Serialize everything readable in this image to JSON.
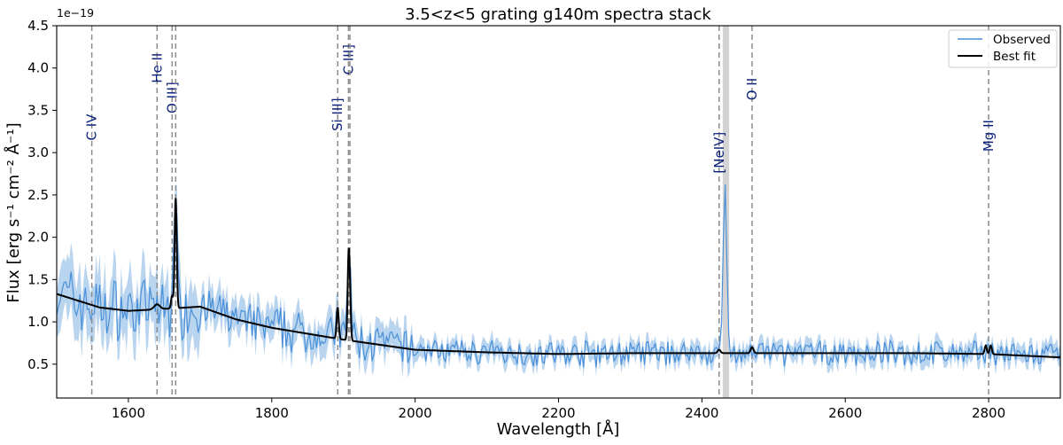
{
  "chart_data": {
    "type": "line",
    "title": "3.5<z<5 grating g140m spectra stack",
    "xlabel": "Wavelength [Å]",
    "ylabel": "Flux  [erg s⁻¹ cm⁻² Å⁻¹]",
    "y_offset_label": "1e−19",
    "xlim": [
      1500,
      2900
    ],
    "ylim": [
      0.1,
      4.5
    ],
    "x_ticks": [
      1600,
      1800,
      2000,
      2200,
      2400,
      2600,
      2800
    ],
    "x_tick_labels": [
      "1600",
      "1800",
      "2000",
      "2200",
      "2400",
      "2600",
      "2800"
    ],
    "y_ticks": [
      0.5,
      1.0,
      1.5,
      2.0,
      2.5,
      3.0,
      3.5,
      4.0,
      4.5
    ],
    "y_tick_labels": [
      "0.5",
      "1.0",
      "1.5",
      "2.0",
      "2.5",
      "3.0",
      "3.5",
      "4.0",
      "4.5"
    ],
    "legend": {
      "position": "top-right",
      "entries": [
        {
          "label": "Observed",
          "color": "#4a90d9"
        },
        {
          "label": "Best fit",
          "color": "#000000"
        }
      ]
    },
    "line_markers": [
      {
        "label": "C IV",
        "x": 1549,
        "label_y": 3.3
      },
      {
        "label": "He II",
        "x": 1640,
        "label_y": 4.0
      },
      {
        "label": "O III]",
        "x": 1661,
        "label_y": 3.65
      },
      {
        "label": "O III]",
        "x": 1666,
        "label_y": 3.65,
        "hidden_label": true
      },
      {
        "label": "Si III]",
        "x": 1892,
        "label_y": 3.45
      },
      {
        "label": "C III]",
        "x": 1907,
        "label_y": 4.1
      },
      {
        "label": "C III]",
        "x": 1909,
        "label_y": 4.1,
        "hidden_label": true
      },
      {
        "label": "[NeIV]",
        "x": 2424,
        "label_y": 3.0
      },
      {
        "label": "O II",
        "x": 2470,
        "label_y": 3.75
      },
      {
        "label": "Mg II",
        "x": 2800,
        "label_y": 3.2
      }
    ],
    "masked_band": [
      2429,
      2438
    ],
    "series": [
      {
        "name": "Observed",
        "color": "#4a90d9",
        "band_color": "#b8d4ee",
        "x_start": 1500,
        "x_step": 2.5,
        "noise_seed": 7,
        "features": [
          {
            "x": 1665,
            "height": 1.25,
            "width": 2.5
          },
          {
            "x": 1892,
            "height": 0.3,
            "width": 2
          },
          {
            "x": 1908,
            "height": 1.0,
            "width": 2.5
          },
          {
            "x": 2432,
            "height": 1.95,
            "width": 2.5
          },
          {
            "x": 2800,
            "height": 0.1,
            "width": 3
          }
        ]
      },
      {
        "name": "Best fit",
        "color": "#000000",
        "continuum": [
          [
            1500,
            1.33
          ],
          [
            1560,
            1.17
          ],
          [
            1600,
            1.13
          ],
          [
            1645,
            1.15
          ],
          [
            1700,
            1.18
          ],
          [
            1750,
            1.03
          ],
          [
            1800,
            0.93
          ],
          [
            1850,
            0.86
          ],
          [
            1900,
            0.79
          ],
          [
            1950,
            0.73
          ],
          [
            2000,
            0.67
          ],
          [
            2100,
            0.64
          ],
          [
            2200,
            0.62
          ],
          [
            2300,
            0.63
          ],
          [
            2400,
            0.63
          ],
          [
            2500,
            0.63
          ],
          [
            2600,
            0.63
          ],
          [
            2700,
            0.63
          ],
          [
            2800,
            0.62
          ],
          [
            2900,
            0.58
          ]
        ],
        "lines": [
          {
            "x": 1640,
            "height": 0.06,
            "width": 4
          },
          {
            "x": 1661,
            "height": 0.15,
            "width": 1.5
          },
          {
            "x": 1666,
            "height": 1.3,
            "width": 1.4
          },
          {
            "x": 1892,
            "height": 0.37,
            "width": 1.4
          },
          {
            "x": 1907,
            "height": 0.9,
            "width": 1.3
          },
          {
            "x": 1909,
            "height": 0.5,
            "width": 1.3
          },
          {
            "x": 2424,
            "height": 0.04,
            "width": 2
          },
          {
            "x": 2470,
            "height": 0.07,
            "width": 2
          },
          {
            "x": 2796,
            "height": 0.1,
            "width": 1.5
          },
          {
            "x": 2803,
            "height": 0.1,
            "width": 1.5
          }
        ]
      }
    ]
  }
}
